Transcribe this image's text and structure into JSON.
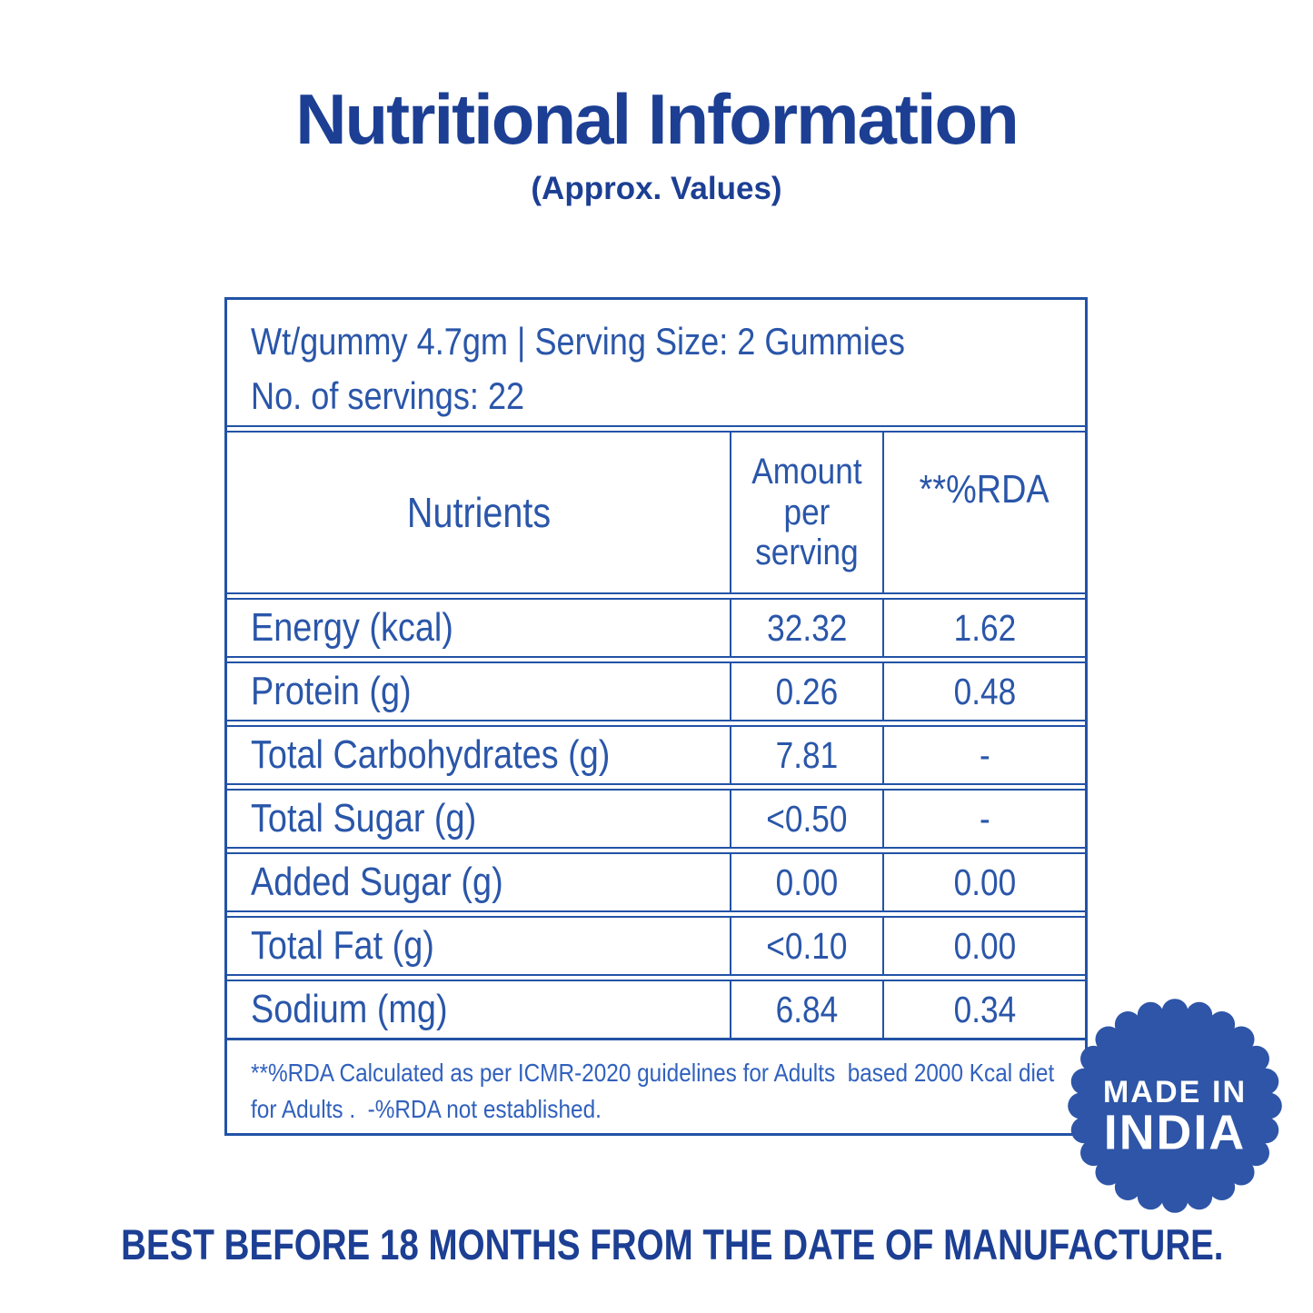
{
  "header": {
    "title": "Nutritional Information",
    "subtitle": "(Approx. Values)"
  },
  "table": {
    "serving_info": {
      "line1": "Wt/gummy 4.7gm | Serving Size: 2 Gummies",
      "line2": "No. of servings: 22"
    },
    "columns": [
      "Nutrients",
      "Amount per serving",
      "**%RDA"
    ],
    "rows": [
      {
        "nutrient": "Energy (kcal)",
        "amount": "32.32",
        "rda": "1.62"
      },
      {
        "nutrient": "Protein (g)",
        "amount": "0.26",
        "rda": "0.48"
      },
      {
        "nutrient": "Total Carbohydrates (g)",
        "amount": "7.81",
        "rda": "-"
      },
      {
        "nutrient": "Total Sugar (g)",
        "amount": "<0.50",
        "rda": "-"
      },
      {
        "nutrient": "Added Sugar (g)",
        "amount": "0.00",
        "rda": "0.00"
      },
      {
        "nutrient": "Total Fat (g)",
        "amount": "<0.10",
        "rda": "0.00"
      },
      {
        "nutrient": "Sodium (mg)",
        "amount": "6.84",
        "rda": "0.34"
      }
    ],
    "footnote": "**%RDA Calculated as per ICMR-2020 guidelines for Adults  based 2000 Kcal diet for Adults .  -%RDA not established."
  },
  "badge": {
    "line1": "MADE IN",
    "line2": "INDIA"
  },
  "footer": {
    "best_before": "BEST BEFORE 18 MONTHS FROM THE DATE OF MANUFACTURE."
  },
  "colors": {
    "title_blue": "#1c3f94",
    "table_text_blue": "#2a56a9",
    "table_border_blue": "#2253a6",
    "footnote_blue": "#3161bd",
    "badge_blue": "#2e55a7",
    "badge_text": "#ffffff",
    "background": "#ffffff"
  }
}
